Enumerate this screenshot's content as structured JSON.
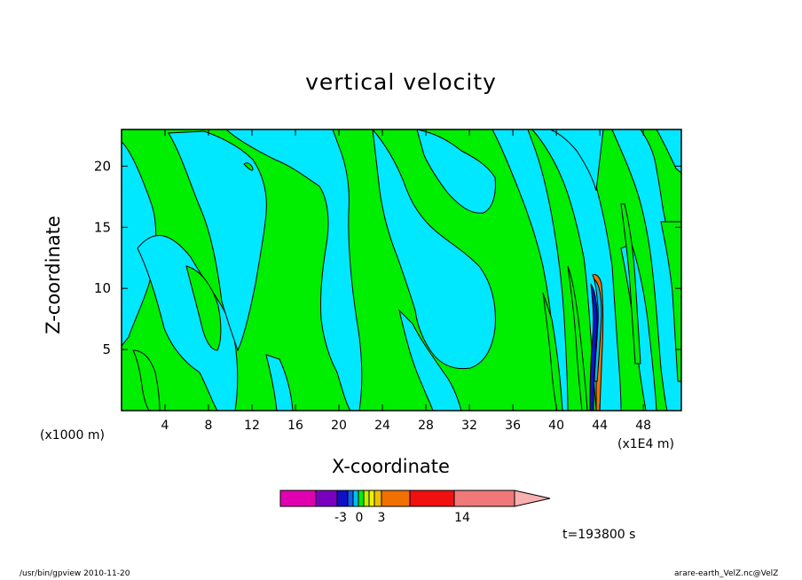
{
  "chart_data": {
    "type": "heatmap",
    "title": "vertical velocity",
    "xlabel": "X-coordinate",
    "ylabel": "Z-coordinate",
    "x_unit_left": "(x1000 m)",
    "x_unit_right": "(x1E4 m)",
    "xlim": [
      0,
      51.5
    ],
    "ylim": [
      0,
      23
    ],
    "xticks": [
      4,
      8,
      12,
      16,
      20,
      24,
      28,
      32,
      36,
      40,
      44,
      48
    ],
    "yticks": [
      5,
      10,
      15,
      20
    ],
    "time_label": "t=193800 s",
    "colorbar": {
      "colors": [
        "#e000b0",
        "#7a00c0",
        "#1010c8",
        "#1060f0",
        "#00c0f0",
        "#00f000",
        "#c0f000",
        "#f0f000",
        "#f0c000",
        "#f07000",
        "#f01010",
        "#f07878",
        "#f8b0b0"
      ],
      "labels": [
        {
          "text": "-3",
          "value": -3
        },
        {
          "text": "0",
          "value": 0
        },
        {
          "text": "3",
          "value": 3
        },
        {
          "text": "14",
          "value": 14
        }
      ]
    },
    "regions": [
      {
        "level": "negative",
        "color": "#00e8ff"
      },
      {
        "level": "positive",
        "color": "#00ee00"
      }
    ]
  },
  "footer": {
    "left": "/usr/bin/gpview   2010-11-20",
    "right": "arare-earth_VelZ.nc@VelZ"
  }
}
